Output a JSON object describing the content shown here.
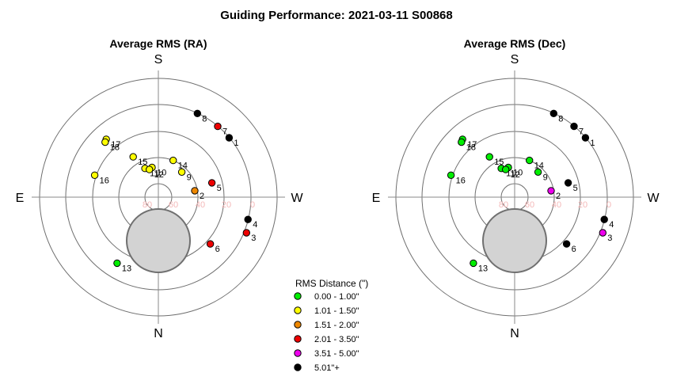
{
  "title": "Guiding Performance: 2021-03-11 S00868",
  "colors": {
    "ring": "#6f6f6f",
    "axis": "#8a8a8a",
    "obscura_fill": "#d3d3d3",
    "obscura_stroke": "#707070",
    "ring_label": "#f4b8b8",
    "point_label": "#000000"
  },
  "legend": {
    "title": "RMS Distance (\")",
    "items": [
      {
        "label": "0.00 - 1.00\"",
        "color": "#00ee00"
      },
      {
        "label": "1.01 - 1.50\"",
        "color": "#ffff00"
      },
      {
        "label": "1.51 - 2.00\"",
        "color": "#ee8800"
      },
      {
        "label": "2.01 - 3.50\"",
        "color": "#ee0000"
      },
      {
        "label": "3.51 - 5.00\"",
        "color": "#ee00ee"
      },
      {
        "label": "5.01\"+",
        "color": "#000000"
      }
    ]
  },
  "chart_data": [
    {
      "type": "scatter",
      "polar": true,
      "title": "Average RMS (RA)",
      "directions": {
        "top": "S",
        "bottom": "N",
        "left": "E",
        "right": "W"
      },
      "radial_axis": {
        "label_values": [
          "80",
          "60",
          "40",
          "20",
          "0"
        ],
        "altitude_range": [
          0,
          90
        ]
      },
      "points": [
        {
          "id": "1",
          "azimuth": 50,
          "altitude": 20,
          "rms_class": 5
        },
        {
          "id": "2",
          "azimuth": 80,
          "altitude": 62,
          "rms_class": 2
        },
        {
          "id": "3",
          "azimuth": 112,
          "altitude": 18,
          "rms_class": 3
        },
        {
          "id": "4",
          "azimuth": 104,
          "altitude": 20,
          "rms_class": 5
        },
        {
          "id": "5",
          "azimuth": 75,
          "altitude": 48,
          "rms_class": 3
        },
        {
          "id": "6",
          "azimuth": 132,
          "altitude": 37,
          "rms_class": 3
        },
        {
          "id": "7",
          "azimuth": 40,
          "altitude": 20,
          "rms_class": 3
        },
        {
          "id": "8",
          "azimuth": 25,
          "altitude": 20,
          "rms_class": 5
        },
        {
          "id": "9",
          "azimuth": 43,
          "altitude": 64,
          "rms_class": 1
        },
        {
          "id": "10",
          "azimuth": 348,
          "altitude": 67,
          "rms_class": 1
        },
        {
          "id": "11",
          "azimuth": 335,
          "altitude": 66,
          "rms_class": 1
        },
        {
          "id": "12",
          "azimuth": 342,
          "altitude": 68,
          "rms_class": 1
        },
        {
          "id": "13",
          "azimuth": 212,
          "altitude": 31,
          "rms_class": 0
        },
        {
          "id": "14",
          "azimuth": 22,
          "altitude": 60,
          "rms_class": 1
        },
        {
          "id": "15",
          "azimuth": 328,
          "altitude": 54,
          "rms_class": 1
        },
        {
          "id": "16",
          "azimuth": 289,
          "altitude": 39,
          "rms_class": 1
        },
        {
          "id": "17",
          "azimuth": 318,
          "altitude": 31,
          "rms_class": 1
        },
        {
          "id": "18",
          "azimuth": 316,
          "altitude": 32,
          "rms_class": 1
        }
      ]
    },
    {
      "type": "scatter",
      "polar": true,
      "title": "Average RMS (Dec)",
      "directions": {
        "top": "S",
        "bottom": "N",
        "left": "E",
        "right": "W"
      },
      "radial_axis": {
        "label_values": [
          "80",
          "60",
          "40",
          "20",
          "0"
        ],
        "altitude_range": [
          0,
          90
        ]
      },
      "points": [
        {
          "id": "1",
          "azimuth": 50,
          "altitude": 20,
          "rms_class": 5
        },
        {
          "id": "2",
          "azimuth": 80,
          "altitude": 62,
          "rms_class": 4
        },
        {
          "id": "3",
          "azimuth": 112,
          "altitude": 18,
          "rms_class": 4
        },
        {
          "id": "4",
          "azimuth": 104,
          "altitude": 20,
          "rms_class": 5
        },
        {
          "id": "5",
          "azimuth": 75,
          "altitude": 48,
          "rms_class": 5
        },
        {
          "id": "6",
          "azimuth": 132,
          "altitude": 37,
          "rms_class": 5
        },
        {
          "id": "7",
          "azimuth": 40,
          "altitude": 20,
          "rms_class": 5
        },
        {
          "id": "8",
          "azimuth": 25,
          "altitude": 20,
          "rms_class": 5
        },
        {
          "id": "9",
          "azimuth": 43,
          "altitude": 64,
          "rms_class": 0
        },
        {
          "id": "10",
          "azimuth": 348,
          "altitude": 67,
          "rms_class": 0
        },
        {
          "id": "11",
          "azimuth": 335,
          "altitude": 66,
          "rms_class": 0
        },
        {
          "id": "12",
          "azimuth": 342,
          "altitude": 68,
          "rms_class": 0
        },
        {
          "id": "13",
          "azimuth": 212,
          "altitude": 31,
          "rms_class": 0
        },
        {
          "id": "14",
          "azimuth": 22,
          "altitude": 60,
          "rms_class": 0
        },
        {
          "id": "15",
          "azimuth": 328,
          "altitude": 54,
          "rms_class": 0
        },
        {
          "id": "16",
          "azimuth": 289,
          "altitude": 39,
          "rms_class": 0
        },
        {
          "id": "17",
          "azimuth": 318,
          "altitude": 31,
          "rms_class": 0
        },
        {
          "id": "18",
          "azimuth": 316,
          "altitude": 32,
          "rms_class": 0
        }
      ]
    }
  ]
}
